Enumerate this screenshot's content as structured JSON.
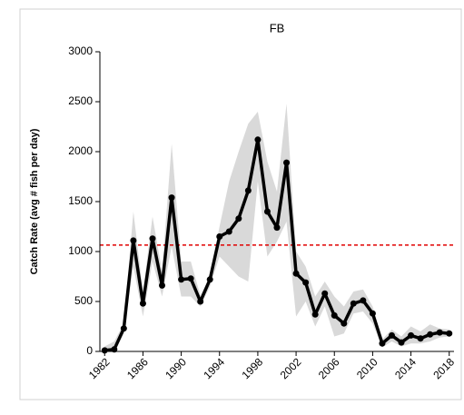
{
  "chart_data": {
    "type": "line",
    "title": "FB",
    "y_label": "Catch Rate (avg # fish per day)",
    "x": [
      1982,
      1983,
      1984,
      1985,
      1986,
      1987,
      1988,
      1989,
      1990,
      1991,
      1992,
      1993,
      1994,
      1995,
      1996,
      1997,
      1998,
      1999,
      2000,
      2001,
      2002,
      2003,
      2004,
      2005,
      2006,
      2007,
      2008,
      2009,
      2010,
      2011,
      2012,
      2013,
      2014,
      2015,
      2016,
      2017,
      2018
    ],
    "series": [
      {
        "color": "#000000",
        "values": [
          10,
          20,
          230,
          1110,
          480,
          1130,
          660,
          1540,
          720,
          730,
          500,
          720,
          1150,
          1200,
          1330,
          1610,
          2120,
          1400,
          1240,
          1890,
          780,
          690,
          370,
          580,
          360,
          280,
          480,
          510,
          380,
          80,
          160,
          90,
          160,
          130,
          170,
          190,
          180
        ]
      }
    ],
    "band": {
      "color": "#d9d9d9",
      "upper": [
        50,
        100,
        280,
        1400,
        600,
        1350,
        800,
        2080,
        900,
        900,
        560,
        750,
        1250,
        1700,
        2000,
        2280,
        2400,
        1900,
        1600,
        2480,
        1000,
        850,
        550,
        700,
        550,
        450,
        600,
        620,
        450,
        120,
        220,
        150,
        250,
        200,
        270,
        230,
        220
      ],
      "lower": [
        0,
        0,
        180,
        850,
        350,
        900,
        550,
        1050,
        550,
        550,
        450,
        650,
        950,
        850,
        750,
        700,
        1700,
        950,
        1100,
        1300,
        350,
        500,
        250,
        450,
        150,
        180,
        380,
        400,
        280,
        40,
        100,
        50,
        80,
        80,
        100,
        140,
        150
      ]
    },
    "reference_line": 1065,
    "reference_color": "#e00000",
    "xlim": [
      1981.5,
      2018.5
    ],
    "xticks": [
      1982,
      1986,
      1990,
      1994,
      1998,
      2002,
      2006,
      2010,
      2014,
      2018
    ],
    "ylim": [
      0,
      3000
    ],
    "yticks": [
      0,
      500,
      1000,
      1500,
      2000,
      2500,
      3000
    ]
  }
}
